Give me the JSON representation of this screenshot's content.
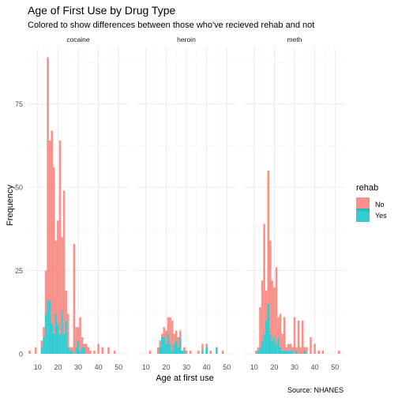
{
  "chart_data": {
    "type": "bar",
    "title": "Age of First Use by Drug Type",
    "subtitle": "Colored to show differences between those who've recieved rehab and not",
    "xlabel": "Age at first use",
    "ylabel": "Frequency",
    "caption": "Source: NHANES",
    "stacked": true,
    "bin_width": 1,
    "xlim": [
      5,
      55
    ],
    "ylim": [
      0,
      92
    ],
    "x_ticks": [
      10,
      20,
      30,
      40,
      50
    ],
    "y_ticks": [
      0,
      25,
      50,
      75
    ],
    "grid": true,
    "legend": {
      "title": "rehab",
      "position": "right",
      "entries": [
        {
          "label": "No",
          "color": "#F8766D"
        },
        {
          "label": "Yes",
          "color": "#00BFC4"
        }
      ]
    },
    "panels": [
      {
        "name": "cocaine",
        "series": [
          {
            "name": "Yes",
            "x": [
              10,
              11,
              12,
              13,
              14,
              15,
              16,
              17,
              18,
              19,
              20,
              21,
              22,
              23,
              24,
              25,
              26,
              27,
              28,
              29,
              30,
              31,
              32,
              33,
              34,
              35
            ],
            "values": [
              0,
              0,
              2,
              5,
              12,
              16,
              16,
              9,
              6,
              12,
              9,
              6,
              13,
              6,
              10,
              2,
              1,
              1,
              0,
              2,
              4,
              1,
              2,
              2,
              0,
              0
            ]
          },
          {
            "name": "No",
            "x": [
              6,
              9,
              12,
              13,
              14,
              15,
              16,
              17,
              18,
              19,
              20,
              21,
              22,
              23,
              24,
              25,
              26,
              27,
              28,
              29,
              30,
              31,
              32,
              33,
              34,
              35,
              36,
              38,
              40,
              42,
              45,
              48
            ],
            "values": [
              1,
              2,
              2,
              3,
              13,
              73,
              48,
              58,
              50,
              22,
              31,
              58,
              22,
              43,
              9,
              10,
              1,
              1,
              33,
              6,
              4,
              10,
              3,
              1,
              3,
              2,
              1,
              1,
              3,
              2,
              2,
              1
            ]
          }
        ]
      },
      {
        "name": "heroin",
        "series": [
          {
            "name": "Yes",
            "x": [
              16,
              17,
              18,
              19,
              20,
              21,
              22,
              23,
              24,
              25,
              26,
              27,
              28,
              29,
              30,
              32,
              34,
              36,
              38,
              40,
              42,
              45,
              48
            ],
            "values": [
              0,
              2,
              5,
              5,
              3,
              6,
              3,
              1,
              3,
              4,
              2,
              5,
              1,
              1,
              0,
              0,
              0,
              0,
              1,
              2,
              0,
              2,
              0
            ]
          },
          {
            "name": "No",
            "x": [
              12,
              16,
              17,
              18,
              19,
              20,
              21,
              22,
              23,
              24,
              25,
              26,
              27,
              28,
              29,
              30,
              32,
              36,
              38,
              40,
              42,
              45,
              48
            ],
            "values": [
              1,
              2,
              2,
              1,
              3,
              4,
              5,
              8,
              9,
              3,
              3,
              3,
              2,
              0,
              1,
              1,
              1,
              1,
              2,
              1,
              1,
              0,
              1
            ]
          }
        ]
      },
      {
        "name": "meth",
        "series": [
          {
            "name": "Yes",
            "x": [
              10,
              11,
              12,
              13,
              14,
              15,
              16,
              17,
              18,
              19,
              20,
              21,
              22,
              23,
              24,
              25,
              26,
              27,
              28,
              29,
              30,
              31,
              32,
              33,
              34,
              35,
              36,
              38,
              40,
              50,
              52
            ],
            "values": [
              0,
              0,
              1,
              2,
              4,
              6,
              10,
              15,
              6,
              4,
              5,
              3,
              5,
              2,
              1,
              1,
              1,
              1,
              1,
              1,
              0,
              1,
              0,
              0,
              0,
              1,
              0,
              0,
              0,
              0,
              0
            ]
          },
          {
            "name": "No",
            "x": [
              10,
              11,
              12,
              13,
              14,
              15,
              16,
              17,
              18,
              19,
              20,
              21,
              22,
              23,
              24,
              25,
              26,
              27,
              28,
              29,
              30,
              31,
              32,
              33,
              34,
              35,
              36,
              38,
              40,
              42,
              44,
              45,
              52
            ],
            "values": [
              0,
              1,
              1,
              12,
              18,
              33,
              9,
              40,
              28,
              18,
              15,
              23,
              6,
              10,
              5,
              10,
              1,
              2,
              2,
              1,
              11,
              1,
              10,
              2,
              10,
              1,
              2,
              5,
              3,
              1,
              1,
              0,
              1
            ]
          }
        ]
      }
    ]
  }
}
